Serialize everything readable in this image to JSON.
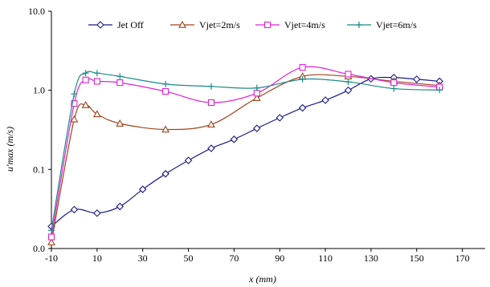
{
  "chart_data": {
    "type": "line",
    "xlabel": "x (mm)",
    "ylabel": "u'max (m/s)",
    "xlim": [
      -10,
      180
    ],
    "ylim": [
      0.01,
      10
    ],
    "y_scale": "log",
    "x_ticks": [
      -10,
      10,
      30,
      50,
      70,
      90,
      110,
      130,
      150,
      170
    ],
    "x_tick_labels": [
      "-10",
      "10",
      "30",
      "50",
      "70",
      "90",
      "110",
      "130",
      "150",
      "170"
    ],
    "y_ticks": [
      0.01,
      0.1,
      1,
      10
    ],
    "y_tick_labels": [
      "0.0",
      "0.1",
      "1.0",
      "10.0"
    ],
    "grid": false,
    "legend_position": "top",
    "series": [
      {
        "name": "Jet Off",
        "color": "#1a1a8c",
        "marker": "diamond",
        "x": [
          -10,
          0,
          10,
          20,
          30,
          40,
          50,
          60,
          70,
          80,
          90,
          100,
          110,
          120,
          130,
          140,
          150,
          160
        ],
        "y": [
          0.019,
          0.031,
          0.028,
          0.034,
          0.056,
          0.088,
          0.13,
          0.185,
          0.24,
          0.33,
          0.45,
          0.6,
          0.75,
          1.0,
          1.4,
          1.45,
          1.38,
          1.3
        ]
      },
      {
        "name": "Vjet=2m/s",
        "color": "#a0441a",
        "marker": "triangle",
        "x": [
          -10,
          0,
          5,
          10,
          20,
          40,
          60,
          80,
          100,
          120,
          140,
          160
        ],
        "y": [
          0.012,
          0.43,
          0.65,
          0.5,
          0.38,
          0.32,
          0.37,
          0.8,
          1.5,
          1.5,
          1.3,
          1.15
        ]
      },
      {
        "name": "Vjet=4m/s",
        "color": "#e020d8",
        "marker": "square",
        "x": [
          -10,
          0,
          5,
          10,
          20,
          40,
          60,
          80,
          100,
          120,
          140,
          160
        ],
        "y": [
          0.014,
          0.68,
          1.35,
          1.3,
          1.25,
          0.97,
          0.7,
          0.92,
          1.95,
          1.6,
          1.25,
          1.1
        ]
      },
      {
        "name": "Vjet=6m/s",
        "color": "#1a8a86",
        "marker": "plus",
        "x": [
          -10,
          0,
          5,
          10,
          20,
          40,
          60,
          80,
          100,
          120,
          140,
          160
        ],
        "y": [
          0.017,
          0.9,
          1.65,
          1.65,
          1.5,
          1.2,
          1.12,
          1.07,
          1.38,
          1.28,
          1.05,
          1.01
        ]
      }
    ]
  }
}
